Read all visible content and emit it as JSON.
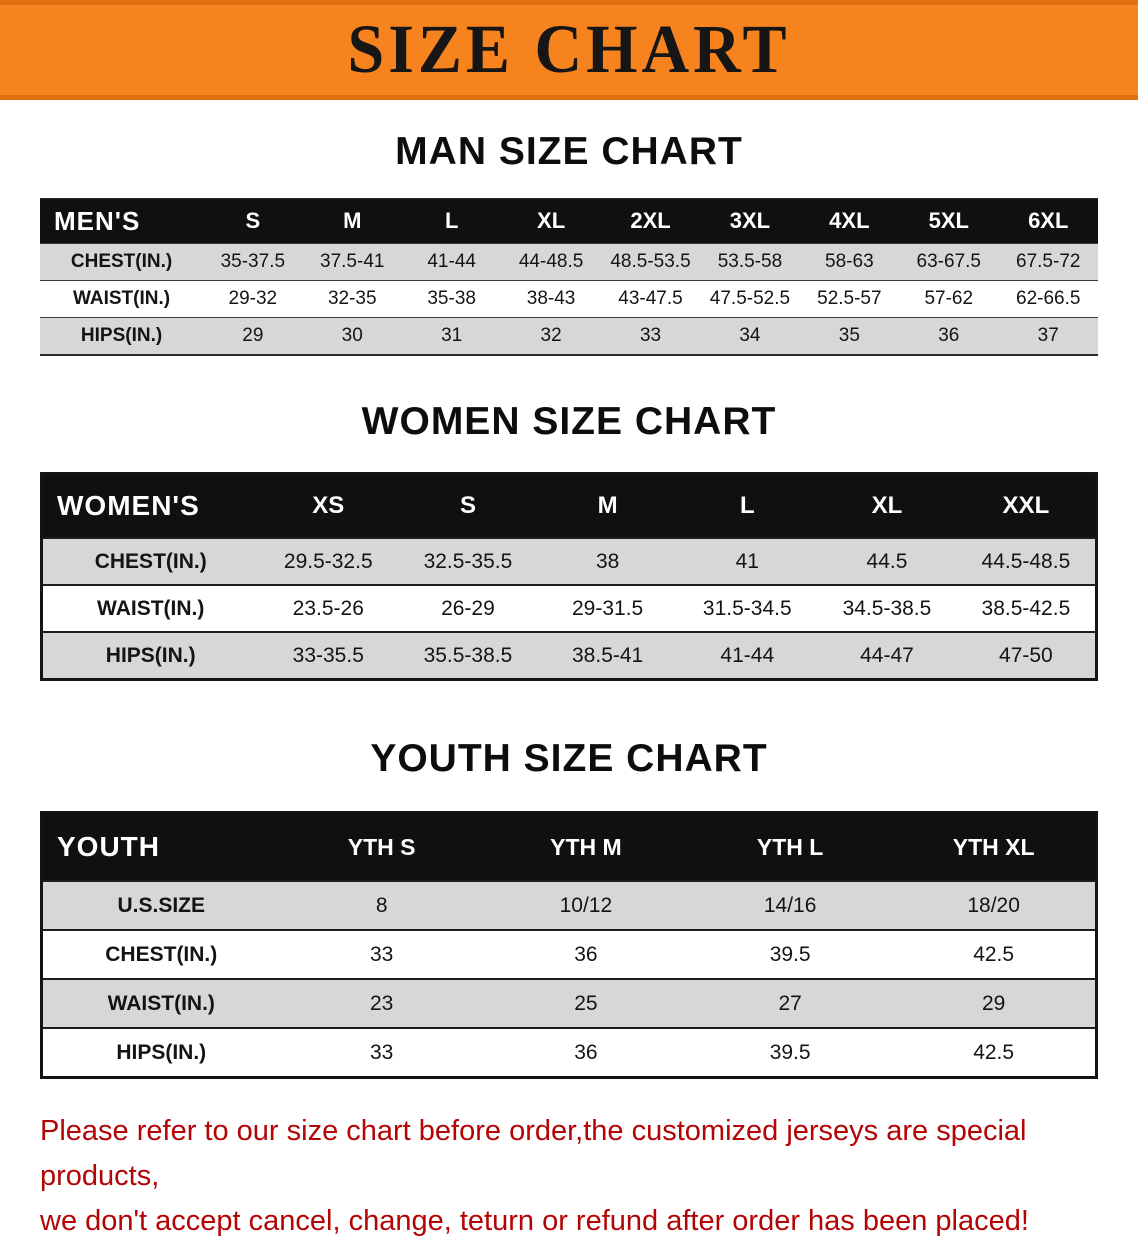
{
  "banner": {
    "title": "SIZE CHART",
    "bg_color": "#f6831d",
    "text_color": "#161616"
  },
  "sections": [
    {
      "heading": "MAN SIZE CHART",
      "table": {
        "label": "MEN'S",
        "columns": [
          "S",
          "M",
          "L",
          "XL",
          "2XL",
          "3XL",
          "4XL",
          "5XL",
          "6XL"
        ],
        "rows": [
          {
            "label": "CHEST(IN.)",
            "values": [
              "35-37.5",
              "37.5-41",
              "41-44",
              "44-48.5",
              "48.5-53.5",
              "53.5-58",
              "58-63",
              "63-67.5",
              "67.5-72"
            ]
          },
          {
            "label": "WAIST(IN.)",
            "values": [
              "29-32",
              "32-35",
              "35-38",
              "38-43",
              "43-47.5",
              "47.5-52.5",
              "52.5-57",
              "57-62",
              "62-66.5"
            ]
          },
          {
            "label": "HIPS(IN.)",
            "values": [
              "29",
              "30",
              "31",
              "32",
              "33",
              "34",
              "35",
              "36",
              "37"
            ]
          }
        ]
      }
    },
    {
      "heading": "WOMEN SIZE CHART",
      "table": {
        "label": "WOMEN'S",
        "columns": [
          "XS",
          "S",
          "M",
          "L",
          "XL",
          "XXL"
        ],
        "rows": [
          {
            "label": "CHEST(IN.)",
            "values": [
              "29.5-32.5",
              "32.5-35.5",
              "38",
              "41",
              "44.5",
              "44.5-48.5"
            ]
          },
          {
            "label": "WAIST(IN.)",
            "values": [
              "23.5-26",
              "26-29",
              "29-31.5",
              "31.5-34.5",
              "34.5-38.5",
              "38.5-42.5"
            ]
          },
          {
            "label": "HIPS(IN.)",
            "values": [
              "33-35.5",
              "35.5-38.5",
              "38.5-41",
              "41-44",
              "44-47",
              "47-50"
            ]
          }
        ]
      }
    },
    {
      "heading": "YOUTH SIZE CHART",
      "table": {
        "label": "YOUTH",
        "columns": [
          "YTH S",
          "YTH M",
          "YTH L",
          "YTH XL"
        ],
        "rows": [
          {
            "label": "U.S.SIZE",
            "values": [
              "8",
              "10/12",
              "14/16",
              "18/20"
            ]
          },
          {
            "label": "CHEST(IN.)",
            "values": [
              "33",
              "36",
              "39.5",
              "42.5"
            ]
          },
          {
            "label": "WAIST(IN.)",
            "values": [
              "23",
              "25",
              "27",
              "29"
            ]
          },
          {
            "label": "HIPS(IN.)",
            "values": [
              "33",
              "36",
              "39.5",
              "42.5"
            ]
          }
        ]
      }
    }
  ],
  "footer": {
    "lines": [
      "Please refer to our size chart before order,the customized jerseys are special products,",
      "we don't accept cancel, change, teturn or refund after order has been placed!"
    ],
    "text_color": "#b30505",
    "shade_row_color": "#d7d7d7",
    "header_row_color": "#101010"
  }
}
